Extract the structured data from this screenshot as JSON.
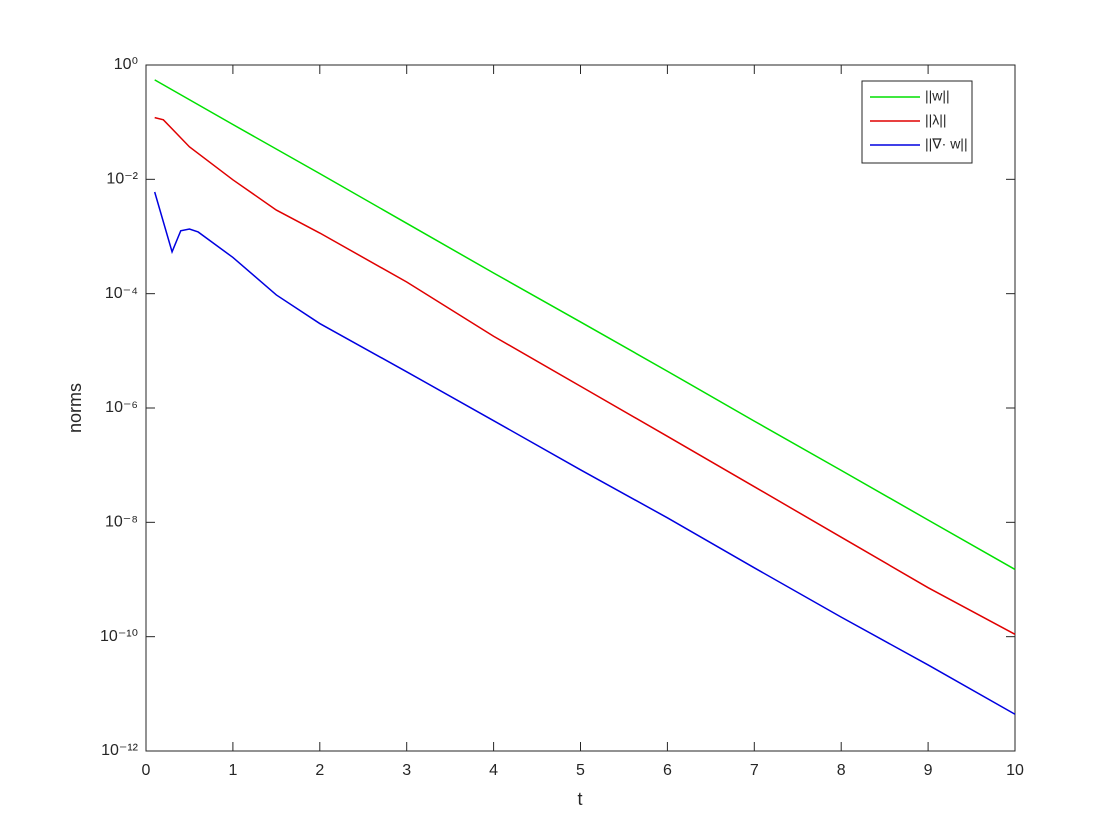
{
  "chart_data": {
    "type": "line",
    "xlabel": "t",
    "ylabel": "norms",
    "xlim": [
      0,
      10
    ],
    "xticks": [
      0,
      1,
      2,
      3,
      4,
      5,
      6,
      7,
      8,
      9,
      10
    ],
    "ylim": [
      1e-12,
      1
    ],
    "log_y": true,
    "yticks": [
      {
        "value": 1e-12,
        "label": "10⁻¹²"
      },
      {
        "value": 1e-10,
        "label": "10⁻¹⁰"
      },
      {
        "value": 1e-08,
        "label": "10⁻⁸"
      },
      {
        "value": 1e-06,
        "label": "10⁻⁶"
      },
      {
        "value": 0.0001,
        "label": "10⁻⁴"
      },
      {
        "value": 0.01,
        "label": "10⁻²"
      },
      {
        "value": 1,
        "label": "10⁰"
      }
    ],
    "legend": "upper right",
    "series": [
      {
        "name": "||w||",
        "color": "#00e000",
        "x": [
          0.1,
          1,
          2,
          3,
          4,
          5,
          6,
          7,
          8,
          9,
          10
        ],
        "values": [
          0.55,
          0.091,
          0.0126,
          0.0017,
          0.00023,
          3.2e-05,
          4.4e-06,
          5.9e-07,
          8.1e-08,
          1.1e-08,
          1.5e-09
        ]
      },
      {
        "name": "||λ||",
        "color": "#e00000",
        "x": [
          0.1,
          0.2,
          0.5,
          1,
          1.5,
          2,
          3,
          4,
          5,
          6,
          7,
          8,
          9,
          10
        ],
        "values": [
          0.12,
          0.11,
          0.037,
          0.0098,
          0.0029,
          0.00115,
          0.00016,
          1.8e-05,
          2.4e-06,
          3.2e-07,
          4.2e-08,
          5.5e-09,
          7.2e-10,
          1.1e-10
        ]
      },
      {
        "name": "||∇· w||",
        "color": "#0000e0",
        "x": [
          0.1,
          0.3,
          0.4,
          0.5,
          0.6,
          1,
          1.5,
          2,
          3,
          4,
          5,
          6,
          7,
          8,
          9,
          10
        ],
        "values": [
          0.006,
          0.00054,
          0.00126,
          0.00135,
          0.0012,
          0.00043,
          9.5e-05,
          3e-05,
          4.3e-06,
          6e-07,
          8.3e-08,
          1.2e-08,
          1.6e-09,
          2.2e-10,
          3.2e-11,
          4.4e-12
        ]
      }
    ]
  }
}
